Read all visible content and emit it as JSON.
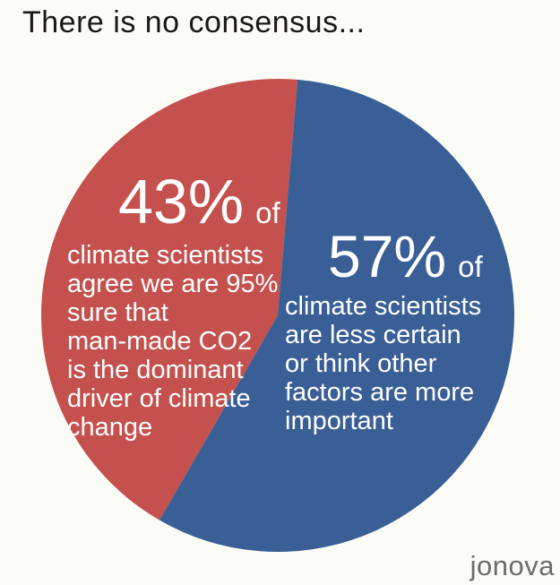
{
  "title": "There is no consensus...",
  "watermark": "jonova",
  "colors": {
    "background": "#fcfcf6",
    "title_text": "#1b1717",
    "label_text": "#ffffff",
    "watermark_text": "#6f6b6a",
    "slice_agree": "#c4514e",
    "slice_less_certain": "#3a5f96"
  },
  "chart_data": {
    "type": "pie",
    "title": "There is no consensus...",
    "unit": "%",
    "total": 100,
    "direction": "clockwise",
    "start_angle_deg": 4.8,
    "legend": "none",
    "slices": [
      {
        "name": "agree",
        "value": 43,
        "start_angle_deg": 210,
        "color": "#c4514e",
        "pct": "43%",
        "of": "of",
        "lines": [
          "climate scientists",
          "agree we are 95%",
          "sure that",
          "man-made CO2",
          "is the dominant",
          "driver of climate",
          "change"
        ]
      },
      {
        "name": "less-certain",
        "value": 57,
        "start_angle_deg": 4.8,
        "color": "#3a5f96",
        "pct": "57%",
        "of": "of",
        "lines": [
          "climate scientists",
          "are less certain",
          "or think other",
          "factors are more",
          "important"
        ]
      }
    ]
  }
}
